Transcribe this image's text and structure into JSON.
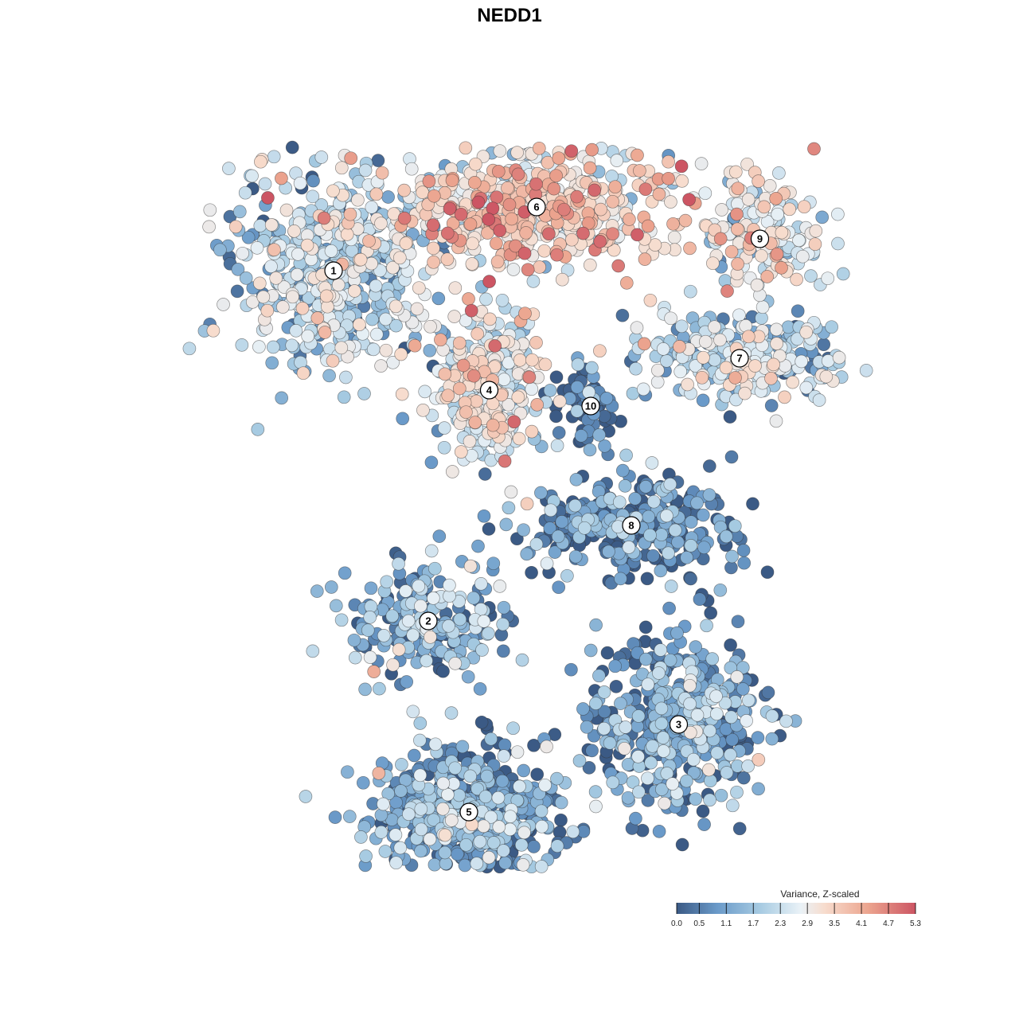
{
  "chart_data": {
    "type": "scatter",
    "title": "NEDD1",
    "xlabel": "",
    "ylabel": "",
    "axes_visible": false,
    "grid": false,
    "legend": {
      "title": "Variance, Z-scaled",
      "placement": "bottom-right",
      "ticks": [
        "0.0",
        "0.5",
        "1.1",
        "1.7",
        "2.3",
        "2.9",
        "3.5",
        "4.1",
        "4.7",
        "5.3"
      ],
      "range": [
        0.0,
        5.3
      ],
      "colors": [
        "#3b5a85",
        "#6a9ac9",
        "#a7cbe2",
        "#e6eff5",
        "#f7dccd",
        "#eca58f",
        "#cc5563"
      ]
    },
    "clusters": [
      {
        "label": "1",
        "x": -2.6,
        "y": 2.6,
        "mean_value": 1.9
      },
      {
        "label": "2",
        "x": -1.2,
        "y": -1.8,
        "mean_value": 1.2
      },
      {
        "label": "3",
        "x": 2.5,
        "y": -3.1,
        "mean_value": 0.9
      },
      {
        "label": "4",
        "x": -0.3,
        "y": 1.1,
        "mean_value": 2.6
      },
      {
        "label": "5",
        "x": -0.6,
        "y": -4.2,
        "mean_value": 0.9
      },
      {
        "label": "6",
        "x": 0.4,
        "y": 3.4,
        "mean_value": 3.3
      },
      {
        "label": "7",
        "x": 3.4,
        "y": 1.5,
        "mean_value": 2.0
      },
      {
        "label": "8",
        "x": 1.8,
        "y": -0.6,
        "mean_value": 0.6
      },
      {
        "label": "9",
        "x": 3.7,
        "y": 3.0,
        "mean_value": 2.8
      },
      {
        "label": "10",
        "x": 1.2,
        "y": 0.9,
        "mean_value": 0.3
      }
    ]
  }
}
